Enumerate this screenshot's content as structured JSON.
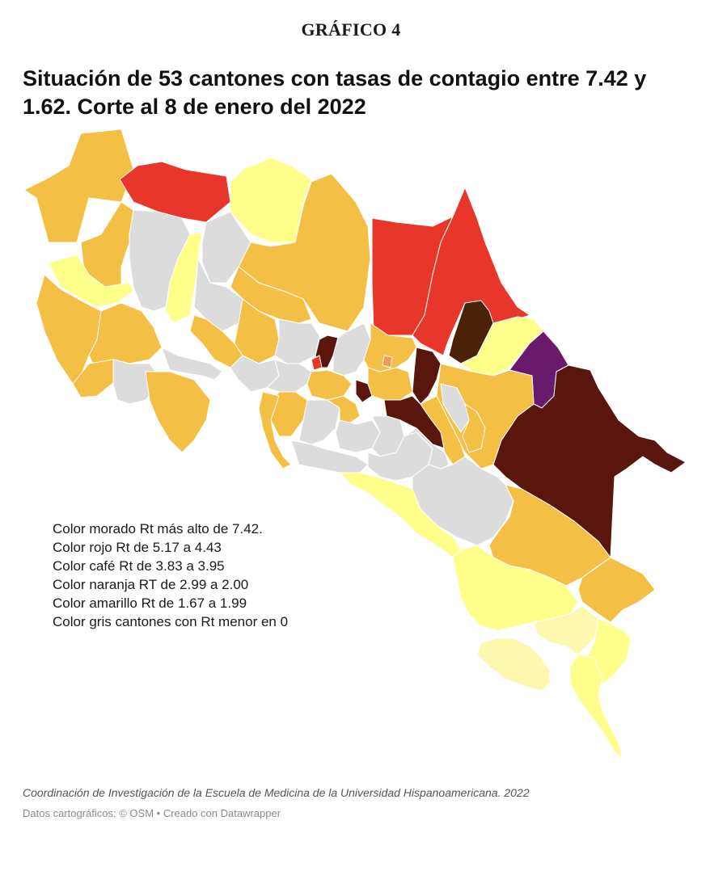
{
  "header": {
    "kicker": "GRÁFICO 4",
    "title_line1": "Situación de 53 cantones con tasas de contagio entre 7.42 y",
    "title_line2": "1.62. Corte al 8 de enero del 2022"
  },
  "legend": {
    "items": [
      "Color morado Rt más alto de 7.42.",
      "Color rojo Rt de 5.17 a 4.43",
      "Color café Rt de 3.83 a 3.95",
      "Color naranja RT de 2.99 a 2.00",
      "Color amarillo Rt de 1.67 a 1.99",
      "Color gris cantones con Rt menor en 0"
    ]
  },
  "map_colors": {
    "purple": "#6a1a6c",
    "red": "#e8372a",
    "brown": "#4a2208",
    "dark_brown": "#5a160c",
    "orange": "#f4bf45",
    "light_orange": "#f29d4a",
    "yellow": "#fefe8a",
    "pale_yellow": "#fef7b0",
    "gray": "#dcdcdc"
  },
  "footer": {
    "source": "Coordinación de Investigación de la Escuela de Medicina de la Universidad Hispanoamericana. 2022",
    "credit_prefix": "Datos cartográficos: ",
    "credit_osm": "© OSM",
    "credit_sep": " • ",
    "credit_tool": "Creado con Datawrapper"
  }
}
